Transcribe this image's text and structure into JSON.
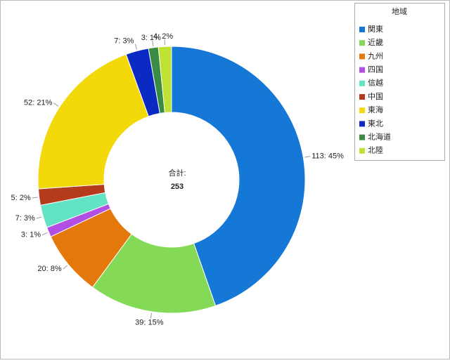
{
  "chart_data": {
    "type": "donut",
    "legend_title": "地域",
    "legend_position": "top-right",
    "total_label": "合計:",
    "total": 253,
    "categories": [
      "関東",
      "近畿",
      "九州",
      "四国",
      "信越",
      "中国",
      "東海",
      "東北",
      "北海道",
      "北陸"
    ],
    "values": [
      113,
      39,
      20,
      3,
      7,
      5,
      52,
      7,
      3,
      4
    ],
    "value_labels": [
      "113: 45%",
      "39: 15%",
      "20: 8%",
      "3: 1%",
      "7: 3%",
      "5: 2%",
      "52: 21%",
      "7: 3%",
      "3: 1%",
      "4: 2%"
    ],
    "colors": [
      "#1577d6",
      "#84d957",
      "#e5780c",
      "#b24ee3",
      "#62e3c3",
      "#b43b1b",
      "#f3d80a",
      "#0b2ac4",
      "#3a8b43",
      "#bde232"
    ]
  }
}
